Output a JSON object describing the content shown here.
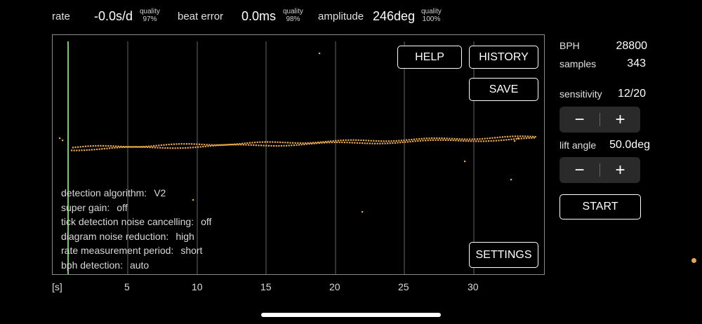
{
  "header": {
    "rate_label": "rate",
    "rate_value": "-0.0s/d",
    "rate_quality_label": "quality",
    "rate_quality": "97%",
    "beat_error_label": "beat error",
    "beat_error_value": "0.0ms",
    "beat_quality_label": "quality",
    "beat_quality": "98%",
    "amplitude_label": "amplitude",
    "amplitude_value": "246deg",
    "amplitude_quality_label": "quality",
    "amplitude_quality": "100%"
  },
  "chart_buttons": {
    "help": "HELP",
    "history": "HISTORY",
    "save": "SAVE",
    "settings": "SETTINGS"
  },
  "status": [
    {
      "key": "detection algorithm:",
      "value": "V2"
    },
    {
      "key": "super gain:",
      "value": "off"
    },
    {
      "key": "tick detection noise cancelling:",
      "value": "off"
    },
    {
      "key": "diagram noise reduction:",
      "value": "high"
    },
    {
      "key": "rate measurement period:",
      "value": "short"
    },
    {
      "key": "bph detection:",
      "value": "auto"
    }
  ],
  "x_axis": {
    "unit_label": "[s]",
    "ticks": [
      "5",
      "10",
      "15",
      "20",
      "25",
      "30"
    ]
  },
  "right_panel": {
    "bph_label": "BPH",
    "bph_value": "28800",
    "samples_label": "samples",
    "samples_value": "343",
    "sensitivity_label": "sensitivity",
    "sensitivity_value": "12/20",
    "lift_angle_label": "lift angle",
    "lift_angle_value": "50.0deg",
    "minus": "−",
    "plus": "+",
    "start": "START"
  },
  "colors": {
    "trace": "#e8a84a",
    "cursor": "#7bc96f",
    "gridline": "#666666",
    "background": "#000000"
  }
}
